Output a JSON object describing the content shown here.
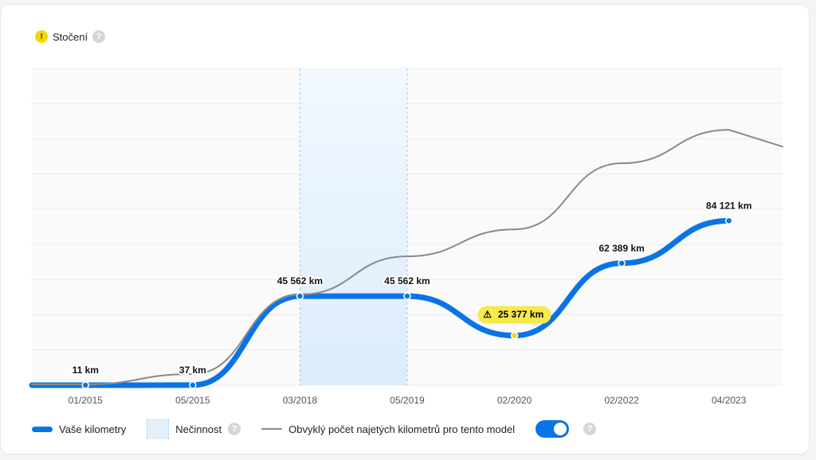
{
  "header": {
    "title": "Stočení"
  },
  "chart_data": {
    "type": "line",
    "categories": [
      "01/2015",
      "05/2015",
      "03/2018",
      "05/2019",
      "02/2020",
      "02/2022",
      "04/2023"
    ],
    "series": [
      {
        "name": "Vaše kilometry",
        "color": "#0a74e6",
        "values": [
          11,
          37,
          45562,
          45562,
          25377,
          62389,
          84121
        ],
        "value_labels": [
          "11 km",
          "37 km",
          "45 562 km",
          "45 562 km",
          "25 377 km",
          "62 389 km",
          "84 121 km"
        ]
      },
      {
        "name": "Obvyklý počet najetých kilometrů pro tento model",
        "color": "#8a8a8a",
        "values": [
          400,
          5700,
          46400,
          65900,
          79700,
          113500,
          130600
        ]
      }
    ],
    "inactivity": {
      "name": "Nečinnost",
      "from": "03/2018",
      "to": "05/2019"
    },
    "warning_at": "02/2020",
    "ylim": [
      0,
      162000
    ],
    "yticks": [
      0,
      18000,
      36000,
      54000,
      72000,
      90000,
      108000,
      126000,
      144000,
      162000
    ],
    "grid": true
  }
}
